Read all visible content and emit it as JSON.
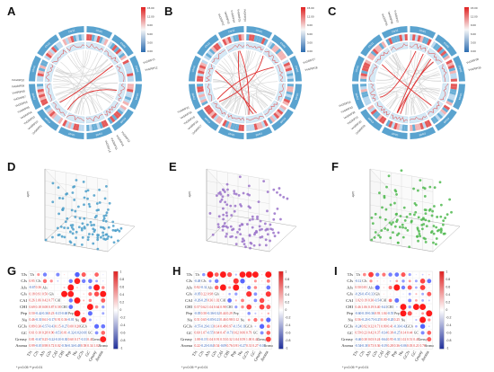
{
  "figure": {
    "panels": [
      {
        "id": "A",
        "type": "circos"
      },
      {
        "id": "B",
        "type": "circos"
      },
      {
        "id": "C",
        "type": "circos"
      },
      {
        "id": "D",
        "type": "scatter3d"
      },
      {
        "id": "E",
        "type": "scatter3d"
      },
      {
        "id": "F",
        "type": "scatter3d"
      },
      {
        "id": "G",
        "type": "correlation"
      },
      {
        "id": "H",
        "type": "correlation"
      },
      {
        "id": "I",
        "type": "correlation"
      }
    ]
  },
  "circos": {
    "chromosome_labels": [
      "Chr01",
      "Chr02",
      "Chr03",
      "Chr04",
      "Chr05",
      "Chr06",
      "Chr07",
      "Chr08",
      "Chr09",
      "Chr10",
      "Chr11",
      "Chr12"
    ],
    "legend_ticks": [
      "15.00",
      "12.00",
      "9.00",
      "6.00",
      "3.00",
      "0.00"
    ],
    "colors": {
      "ring_blue": "#5aa3cf",
      "ring_light": "#d6e9f5",
      "link_red": "#e03030",
      "link_gray": "#d0d0d0",
      "ring_red": "#e23b3b"
    },
    "A": {
      "gene_labels_left": [
        "VvGRIP01",
        "VvGRIP02",
        "VvGRIP03",
        "VvGRIP04",
        "VvGRIP05",
        "VvGRIP06",
        "VvGRIP07",
        "VvGRIP08",
        "VvGRIP09",
        "VvGRIP10"
      ],
      "gene_labels_right": [
        "VvGRIP11",
        "VvGRIP12"
      ],
      "gene_labels_bottom": [
        "VvGRIP13",
        "VvGRIP14",
        "VvGRIP15",
        "VvGRIP16"
      ]
    },
    "B": {
      "gene_labels_left": [
        "VvGRIP17",
        "VvGRIP18",
        "VvGRIP19",
        "VvGRIP20",
        "VvGRIP21"
      ],
      "gene_labels_top": [
        "VvGRIP22",
        "VvGRIP23",
        "VvGRIP24",
        "VvGRIP25",
        "VvGRIP26"
      ],
      "gene_labels_right": [
        "VvGRIP27",
        "VvGRIP28"
      ]
    },
    "C": {
      "gene_labels_left": [
        "VvGRIP29",
        "VvGRIP30",
        "VvGRIP31",
        "VvGRIP32",
        "VvGRIP33",
        "VvGRIP34"
      ],
      "gene_labels_top": [
        "VvGRIP35",
        "VvGRIP36",
        "VvGRIP37"
      ],
      "gene_labels_right": [
        "VvGRIP38",
        "VvGRIP39"
      ]
    }
  },
  "scatter3d": {
    "axis_label_z": "-lg(P)",
    "colors": {
      "D": "#4a9ec9",
      "E": "#9a72c9",
      "F": "#4fb84f"
    }
  },
  "chart_data": [
    {
      "type": "heatmap",
      "panel": "G",
      "row_labels": [
        "TJs",
        "CJs",
        "AJs",
        "GJs",
        "CAI",
        "CHI",
        "Pep",
        "Nu",
        "GCJs",
        "GC",
        "Greasy",
        "Aroma"
      ],
      "col_labels": [
        "TJs",
        "CJs",
        "AJs",
        "GJs",
        "CAI",
        "CHI",
        "Pep",
        "Nu",
        "GCJs",
        "GC",
        "Greasy",
        "Aroma"
      ],
      "colorbar_ticks": [
        "1",
        "0.8",
        "0.6",
        "0.4",
        "0.2",
        "0",
        "-0.2",
        "-0.4",
        "-0.6",
        "-0.8",
        "-1"
      ],
      "footnote": "* p<0.05 ** p<0.01"
    },
    {
      "type": "heatmap",
      "panel": "H",
      "row_labels": [
        "TJs",
        "CJs",
        "AJs",
        "GJs",
        "CAI",
        "CHI",
        "Pep",
        "Nu",
        "GCJs",
        "GC",
        "Greasy",
        "Aroma"
      ],
      "col_labels": [
        "TJs",
        "CJs",
        "AJs",
        "GJs",
        "CAI",
        "CHI",
        "Pep",
        "Nu",
        "GCJs",
        "GC",
        "Greasy",
        "Aroma"
      ],
      "colorbar_ticks": [
        "1",
        "0.8",
        "0.6",
        "0.4",
        "0.2",
        "0",
        "-0.2",
        "-0.4",
        "-0.6",
        "-0.8",
        "-1"
      ],
      "footnote": "* p<0.05 ** p<0.01"
    },
    {
      "type": "heatmap",
      "panel": "I",
      "row_labels": [
        "TJs",
        "CJs",
        "AJs",
        "GJs",
        "CAI",
        "CHI",
        "Pep",
        "Nu",
        "GCJs",
        "GC",
        "Greasy",
        "Aroma"
      ],
      "col_labels": [
        "TJs",
        "CJs",
        "AJs",
        "GJs",
        "CAI",
        "CHI",
        "Pep",
        "Nu",
        "GCJs",
        "GC",
        "Greasy",
        "Aroma"
      ],
      "colorbar_ticks": [
        "1",
        "0.8",
        "0.6",
        "0.4",
        "0.2",
        "0",
        "-0.2",
        "-0.4",
        "-0.6",
        "-0.8",
        "-1"
      ],
      "footnote": "* p<0.05 ** p<0.01"
    }
  ]
}
